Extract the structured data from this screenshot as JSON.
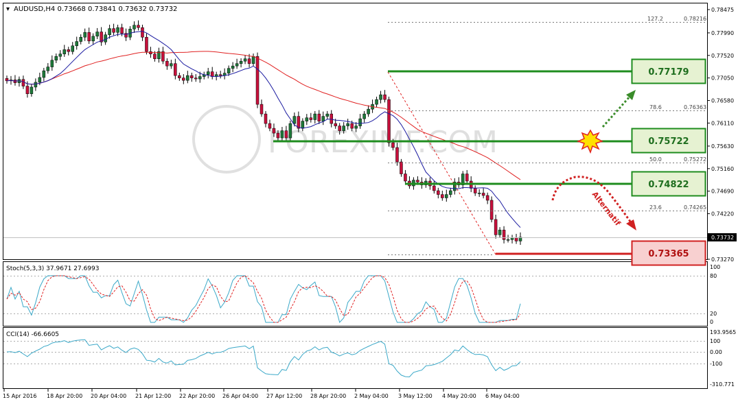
{
  "symbol_header": "AUDUSD,H4  0.73668 0.73841 0.73632 0.73732",
  "watermark": "FOREXIMF.COM",
  "price_scale": [
    "0.78475",
    "0.77990",
    "0.77520",
    "0.77050",
    "0.76580",
    "0.76110",
    "0.75630",
    "0.75160",
    "0.74690",
    "0.74220",
    "0.73732",
    "0.73270"
  ],
  "current_price": "0.73732",
  "fib_labels": [
    {
      "level": "127.2",
      "price": "0.78216"
    },
    {
      "level": "78.6",
      "price": "0.76363"
    },
    {
      "level": "50.0",
      "price": "0.75272"
    },
    {
      "level": "23.6",
      "price": "0.74265"
    }
  ],
  "levels": [
    {
      "label": "0.77179",
      "type": "resistance",
      "color": "#1e8c1e"
    },
    {
      "label": "0.75722",
      "type": "resistance",
      "color": "#1e8c1e"
    },
    {
      "label": "0.74822",
      "type": "resistance",
      "color": "#1e8c1e"
    },
    {
      "label": "0.73365",
      "type": "support",
      "color": "#d02020"
    }
  ],
  "alternatif_label": "Alternatif",
  "stoch": {
    "label": "Stoch(5,3,3) 37.9671 27.6993",
    "scale": [
      "100",
      "80",
      "20",
      "0"
    ]
  },
  "cci": {
    "label": "CCI(14) -66.6605",
    "scale": [
      "193.9565",
      "100",
      "0.00",
      "-100",
      "-310.771"
    ]
  },
  "time_axis": [
    "15 Apr 2016",
    "18 Apr 20:00",
    "20 Apr 04:00",
    "21 Apr 12:00",
    "22 Apr 20:00",
    "26 Apr 04:00",
    "27 Apr 12:00",
    "28 Apr 20:00",
    "2 May 04:00",
    "3 May 12:00",
    "4 May 20:00",
    "6 May 04:00"
  ],
  "colors": {
    "bull": "#1e7a3a",
    "bear": "#c8103c",
    "ma_fast": "#1a1aa0",
    "ma_slow": "#e02020",
    "stoch_main": "#3aa8c8",
    "stoch_signal": "#e02020",
    "cci": "#3aa8c8"
  },
  "chart_data": {
    "type": "candlestick",
    "symbol": "AUDUSD",
    "timeframe": "H4",
    "ohlc": [
      0.73668,
      0.73841,
      0.73632,
      0.73732
    ],
    "ylim": [
      0.7327,
      0.78475
    ],
    "closes": [
      0.7699,
      0.7701,
      0.7695,
      0.7702,
      0.7688,
      0.7672,
      0.7686,
      0.7696,
      0.7706,
      0.772,
      0.7728,
      0.7742,
      0.775,
      0.7755,
      0.7764,
      0.776,
      0.7772,
      0.7781,
      0.779,
      0.78,
      0.7782,
      0.7792,
      0.7801,
      0.778,
      0.7795,
      0.7808,
      0.78,
      0.781,
      0.7798,
      0.779,
      0.7807,
      0.7815,
      0.781,
      0.779,
      0.776,
      0.7755,
      0.7745,
      0.776,
      0.774,
      0.773,
      0.7735,
      0.771,
      0.7705,
      0.77,
      0.771,
      0.7705,
      0.7703,
      0.7708,
      0.7712,
      0.7718,
      0.7708,
      0.7712,
      0.771,
      0.7715,
      0.7725,
      0.773,
      0.7735,
      0.774,
      0.7745,
      0.7735,
      0.775,
      0.765,
      0.763,
      0.761,
      0.76,
      0.759,
      0.758,
      0.7595,
      0.758,
      0.761,
      0.7625,
      0.76,
      0.7615,
      0.7622,
      0.7618,
      0.763,
      0.7615,
      0.7625,
      0.763,
      0.761,
      0.7605,
      0.7595,
      0.7605,
      0.761,
      0.76,
      0.7605,
      0.762,
      0.763,
      0.764,
      0.765,
      0.766,
      0.767,
      0.766,
      0.757,
      0.756,
      0.753,
      0.7505,
      0.749,
      0.748,
      0.7492,
      0.7488,
      0.7482,
      0.749,
      0.748,
      0.747,
      0.7462,
      0.7455,
      0.7462,
      0.747,
      0.7488,
      0.7482,
      0.7505,
      0.749,
      0.7475,
      0.7465,
      0.7465,
      0.746,
      0.745,
      0.741,
      0.7378,
      0.7388,
      0.7368,
      0.7368,
      0.7372,
      0.7365,
      0.7373
    ]
  }
}
